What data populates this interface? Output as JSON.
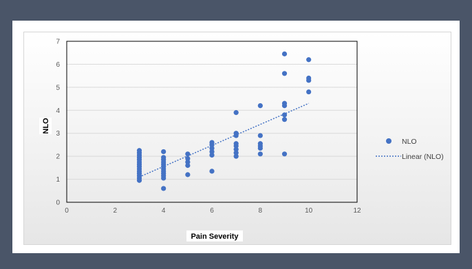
{
  "chart_data": {
    "type": "scatter",
    "title": "",
    "xlabel": "Pain Severity",
    "ylabel": "NLO",
    "xlim": [
      0,
      12
    ],
    "ylim": [
      0,
      7
    ],
    "xticks": [
      0,
      2,
      4,
      6,
      8,
      10,
      12
    ],
    "yticks": [
      0,
      1,
      2,
      3,
      4,
      5,
      6,
      7
    ],
    "grid": "horizontal",
    "legend_position": "right",
    "colors": {
      "points": "#4472c4",
      "trend": "#4472c4"
    },
    "series": [
      {
        "name": "NLO",
        "kind": "scatter",
        "points": [
          [
            3,
            0.95
          ],
          [
            3,
            1.05
          ],
          [
            3,
            1.15
          ],
          [
            3,
            1.25
          ],
          [
            3,
            1.35
          ],
          [
            3,
            1.45
          ],
          [
            3,
            1.55
          ],
          [
            3,
            1.65
          ],
          [
            3,
            1.75
          ],
          [
            3,
            1.85
          ],
          [
            3,
            1.95
          ],
          [
            3,
            2.05
          ],
          [
            3,
            2.15
          ],
          [
            3,
            2.25
          ],
          [
            4,
            0.6
          ],
          [
            4,
            1.05
          ],
          [
            4,
            1.15
          ],
          [
            4,
            1.25
          ],
          [
            4,
            1.35
          ],
          [
            4,
            1.45
          ],
          [
            4,
            1.55
          ],
          [
            4,
            1.65
          ],
          [
            4,
            1.75
          ],
          [
            4,
            1.85
          ],
          [
            4,
            1.95
          ],
          [
            4,
            2.2
          ],
          [
            5,
            1.2
          ],
          [
            5,
            1.6
          ],
          [
            5,
            1.75
          ],
          [
            5,
            1.9
          ],
          [
            5,
            2.1
          ],
          [
            6,
            1.35
          ],
          [
            6,
            2.05
          ],
          [
            6,
            2.2
          ],
          [
            6,
            2.35
          ],
          [
            6,
            2.5
          ],
          [
            6,
            2.6
          ],
          [
            7,
            2.0
          ],
          [
            7,
            2.15
          ],
          [
            7,
            2.3
          ],
          [
            7,
            2.45
          ],
          [
            7,
            2.55
          ],
          [
            7,
            2.9
          ],
          [
            7,
            3.0
          ],
          [
            7,
            3.9
          ],
          [
            8,
            2.1
          ],
          [
            8,
            2.35
          ],
          [
            8,
            2.45
          ],
          [
            8,
            2.55
          ],
          [
            8,
            2.9
          ],
          [
            8,
            4.2
          ],
          [
            9,
            2.1
          ],
          [
            9,
            3.6
          ],
          [
            9,
            3.8
          ],
          [
            9,
            4.2
          ],
          [
            9,
            4.3
          ],
          [
            9,
            5.6
          ],
          [
            9,
            6.45
          ],
          [
            10,
            4.8
          ],
          [
            10,
            5.3
          ],
          [
            10,
            5.4
          ],
          [
            10,
            6.2
          ]
        ]
      },
      {
        "name": "Linear (NLO)",
        "kind": "trendline",
        "points": [
          [
            3,
            1.1
          ],
          [
            10,
            4.3
          ]
        ]
      }
    ]
  }
}
